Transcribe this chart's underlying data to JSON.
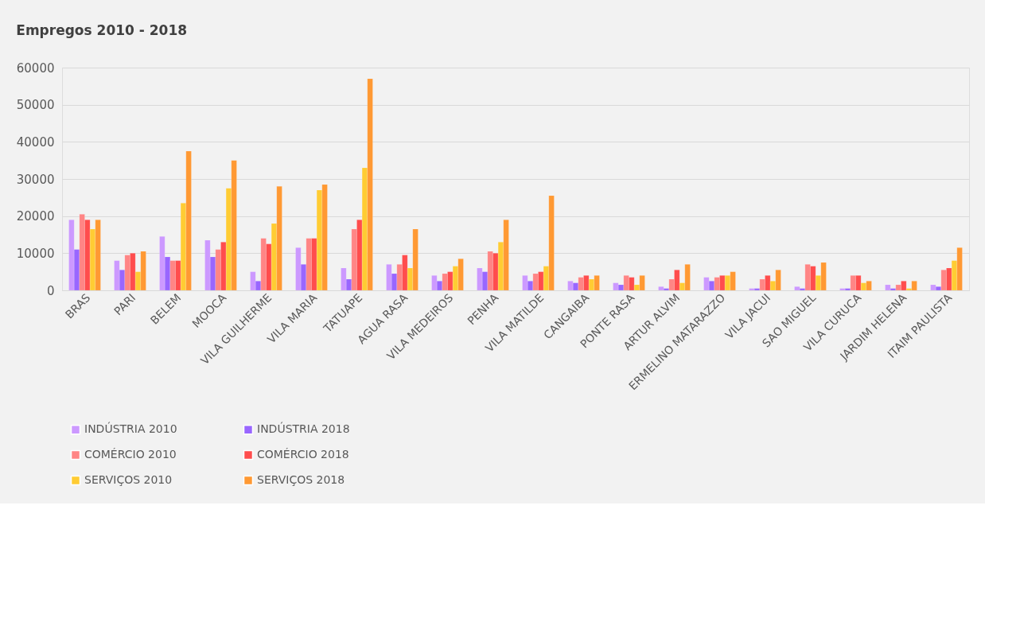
{
  "chart_data": {
    "type": "bar",
    "title": "Empregos 2010  - 2018",
    "categories": [
      "BRAS",
      "PARI",
      "BELEM",
      "MOOCA",
      "VILA GUILHERME",
      "VILA MARIA",
      "TATUAPE",
      "AGUA RASA",
      "VILA MEDEIROS",
      "PENHA",
      "VILA MATILDE",
      "CANGAIBA",
      "PONTE RASA",
      "ARTUR ALVIM",
      "ERMELINO MATARAZZO",
      "VILA JACUI",
      "SAO MIGUEL",
      "VILA CURUCA",
      "JARDIM HELENA",
      "ITAIM PAULISTA"
    ],
    "series": [
      {
        "name": "INDÚSTRIA 2010",
        "color": "#cc99ff",
        "values": [
          19000,
          8000,
          14500,
          13500,
          5000,
          11500,
          6000,
          7000,
          4000,
          6000,
          4000,
          2500,
          2000,
          1000,
          3500,
          500,
          1000,
          500,
          1500,
          1500
        ]
      },
      {
        "name": "INDÚSTRIA 2018",
        "color": "#9966ff",
        "values": [
          11000,
          5500,
          9000,
          9000,
          2500,
          7000,
          3000,
          4500,
          2500,
          5000,
          2500,
          2000,
          1500,
          500,
          2500,
          500,
          500,
          500,
          500,
          1000
        ]
      },
      {
        "name": "COMÉRCIO 2010",
        "color": "#ff8585",
        "values": [
          20500,
          9500,
          8000,
          11000,
          14000,
          14000,
          16500,
          7000,
          4500,
          10500,
          4500,
          3500,
          4000,
          3000,
          3500,
          3000,
          7000,
          4000,
          1500,
          5500
        ]
      },
      {
        "name": "COMÉRCIO 2018",
        "color": "#ff4d4d",
        "values": [
          19000,
          10000,
          8000,
          13000,
          12500,
          14000,
          19000,
          9500,
          5000,
          10000,
          5000,
          4000,
          3500,
          5500,
          4000,
          4000,
          6500,
          4000,
          2500,
          6000
        ]
      },
      {
        "name": "SERVIÇOS 2010",
        "color": "#ffcc33",
        "values": [
          16500,
          5000,
          23500,
          27500,
          18000,
          27000,
          33000,
          6000,
          6500,
          13000,
          6500,
          3000,
          1500,
          2000,
          4000,
          2500,
          4000,
          2000,
          500,
          8000
        ]
      },
      {
        "name": "SERVIÇOS 2018",
        "color": "#ff9933",
        "values": [
          19000,
          10500,
          37500,
          35000,
          28000,
          28500,
          57000,
          16500,
          8500,
          19000,
          25500,
          4000,
          4000,
          7000,
          5000,
          5500,
          7500,
          2500,
          2500,
          11500
        ]
      }
    ],
    "ylim": [
      0,
      60000
    ],
    "yticks": [
      0,
      10000,
      20000,
      30000,
      40000,
      50000,
      60000
    ],
    "grid": "y",
    "legend": "bottom"
  }
}
